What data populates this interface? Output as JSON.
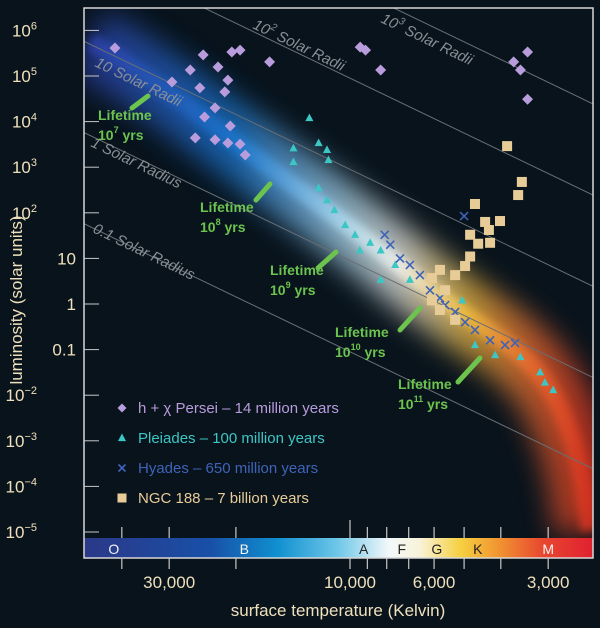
{
  "chart_data": {
    "type": "scatter",
    "xlabel": "surface temperature (Kelvin)",
    "ylabel": "luminosity (solar units)",
    "x_scale": "log-reversed",
    "y_scale": "log",
    "xlim": [
      50000,
      2300
    ],
    "ylim": [
      4e-06,
      3000000
    ],
    "grid": false,
    "legend_position": "bottom-left",
    "y_ticks": [
      {
        "value": 1000000,
        "base": "10",
        "exp": "6"
      },
      {
        "value": 100000,
        "base": "10",
        "exp": "5"
      },
      {
        "value": 10000,
        "base": "10",
        "exp": "4"
      },
      {
        "value": 1000,
        "base": "10",
        "exp": "3"
      },
      {
        "value": 100,
        "base": "10",
        "exp": "2"
      },
      {
        "value": 10,
        "base": "10",
        "exp": ""
      },
      {
        "value": 1,
        "base": "1",
        "exp": ""
      },
      {
        "value": 0.1,
        "base": "0.1",
        "exp": ""
      },
      {
        "value": 0.01,
        "base": "10",
        "exp": "−2"
      },
      {
        "value": 0.001,
        "base": "10",
        "exp": "−3"
      },
      {
        "value": 0.0001,
        "base": "10",
        "exp": "−4"
      },
      {
        "value": 1e-05,
        "base": "10",
        "exp": "−5"
      }
    ],
    "x_ticks": [
      {
        "value": 30000,
        "label": "30,000"
      },
      {
        "value": 10000,
        "label": "10,000"
      },
      {
        "value": 6000,
        "label": "6,000"
      },
      {
        "value": 3000,
        "label": "3,000"
      }
    ],
    "x_minor_ticks": [
      40000,
      20000,
      9000,
      8000,
      7000,
      5000,
      4000
    ],
    "spectral_classes": [
      {
        "label": "O",
        "temp": 42000
      },
      {
        "label": "B",
        "temp": 19000
      },
      {
        "label": "A",
        "temp": 9200
      },
      {
        "label": "F",
        "temp": 7300
      },
      {
        "label": "G",
        "temp": 5900
      },
      {
        "label": "K",
        "temp": 4600
      },
      {
        "label": "M",
        "temp": 3000
      }
    ],
    "radius_lines": [
      {
        "radius": 0.1,
        "label": "0.1 Solar Radius",
        "base": "",
        "exp": ""
      },
      {
        "radius": 1,
        "label": "1 Solar Radius",
        "base": "",
        "exp": ""
      },
      {
        "radius": 10,
        "label": "10 Solar Radii",
        "base": "",
        "exp": ""
      },
      {
        "radius": 100,
        "label": " Solar Radii",
        "base": "10",
        "exp": "2"
      },
      {
        "radius": 1000,
        "label": " Solar Radii",
        "base": "10",
        "exp": "3"
      }
    ],
    "lifetimes": [
      {
        "word": "Lifetime",
        "base": "10",
        "exp": "7",
        "unit": " yrs"
      },
      {
        "word": "Lifetime",
        "base": "10",
        "exp": "8",
        "unit": " yrs"
      },
      {
        "word": "Lifetime",
        "base": "10",
        "exp": "9",
        "unit": " yrs"
      },
      {
        "word": "Lifetime",
        "base": "10",
        "exp": "10",
        "unit": " yrs"
      },
      {
        "word": "Lifetime",
        "base": "10",
        "exp": "11",
        "unit": " yrs"
      }
    ],
    "series": [
      {
        "name": "h + χ Persei  –  14 million years",
        "marker": "diamond",
        "color": "#b99cdc",
        "points": [
          [
            41700,
            410000
          ],
          [
            29500,
            74000
          ],
          [
            26400,
            135000
          ],
          [
            24400,
            290000
          ],
          [
            22300,
            158000
          ],
          [
            20500,
            335000
          ],
          [
            19500,
            370000
          ],
          [
            16300,
            204000
          ],
          [
            24900,
            55000
          ],
          [
            21000,
            81000
          ],
          [
            21400,
            45000
          ],
          [
            24200,
            12600
          ],
          [
            22700,
            20000
          ],
          [
            20700,
            8000
          ],
          [
            25600,
            4400
          ],
          [
            22700,
            4000
          ],
          [
            21000,
            3400
          ],
          [
            19500,
            3200
          ],
          [
            18900,
            1850
          ],
          [
            9400,
            430000
          ],
          [
            9100,
            370000
          ],
          [
            8300,
            135000
          ],
          [
            3400,
            335000
          ],
          [
            3700,
            204000
          ],
          [
            3550,
            135000
          ],
          [
            3400,
            31000
          ]
        ]
      },
      {
        "name": "Pleiades  –  100 million years",
        "marker": "triangle",
        "color": "#3cc6c4",
        "points": [
          [
            12800,
            12000
          ],
          [
            12100,
            3400
          ],
          [
            11500,
            2400
          ],
          [
            11400,
            1440
          ],
          [
            14100,
            2600
          ],
          [
            14100,
            1300
          ],
          [
            12100,
            350
          ],
          [
            11500,
            190
          ],
          [
            11000,
            115
          ],
          [
            10300,
            54
          ],
          [
            9700,
            33
          ],
          [
            8850,
            22
          ],
          [
            8300,
            15
          ],
          [
            9420,
            15
          ],
          [
            7600,
            7.2
          ],
          [
            6950,
            3.4
          ],
          [
            8300,
            3.4
          ],
          [
            5060,
            1.2
          ],
          [
            4680,
            0.126
          ],
          [
            4140,
            0.076
          ],
          [
            3550,
            0.069
          ],
          [
            3150,
            0.032
          ],
          [
            3060,
            0.019
          ],
          [
            2910,
            0.013
          ]
        ]
      },
      {
        "name": "Hyades  –  650 million years",
        "marker": "cross",
        "color": "#3f63b8",
        "points": [
          [
            8100,
            33
          ],
          [
            7830,
            20
          ],
          [
            7380,
            10
          ],
          [
            6950,
            7.2
          ],
          [
            6540,
            4.3
          ],
          [
            6150,
            2.0
          ],
          [
            5790,
            1.35
          ],
          [
            5610,
            0.95
          ],
          [
            5280,
            0.67
          ],
          [
            4970,
            0.4
          ],
          [
            4680,
            0.27
          ],
          [
            4270,
            0.16
          ],
          [
            3900,
            0.126
          ],
          [
            3670,
            0.14
          ],
          [
            5000,
            85
          ]
        ]
      },
      {
        "name": "NGC 188  –  7 billion years",
        "marker": "square",
        "color": "#e8cc98",
        "points": [
          [
            3850,
            2900
          ],
          [
            3520,
            475
          ],
          [
            3600,
            245
          ],
          [
            4680,
            156
          ],
          [
            4020,
            66
          ],
          [
            4400,
            63
          ],
          [
            4300,
            42
          ],
          [
            4820,
            33
          ],
          [
            4590,
            21
          ],
          [
            4270,
            22
          ],
          [
            4820,
            11
          ],
          [
            4970,
            6.8
          ],
          [
            5280,
            4.3
          ],
          [
            5790,
            5.6
          ],
          [
            6080,
            3.7
          ],
          [
            5610,
            2.0
          ],
          [
            6080,
            1.2
          ],
          [
            5790,
            0.74
          ],
          [
            5280,
            0.45
          ]
        ]
      }
    ]
  }
}
